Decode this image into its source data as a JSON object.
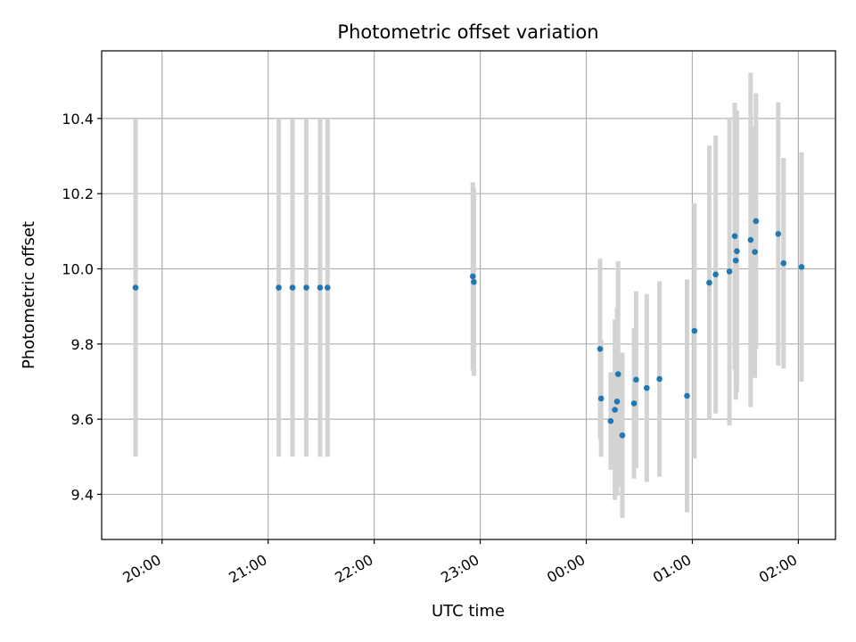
{
  "chart_data": {
    "type": "scatter",
    "title": "Photometric offset variation",
    "xlabel": "UTC time",
    "ylabel": "Photometric offset",
    "x_unit": "hours (UTC, relative to 00:00 of the night's second day)",
    "xlim": [
      -4.57,
      2.35
    ],
    "ylim": [
      9.28,
      10.58
    ],
    "grid": true,
    "x_ticks": [
      -4,
      -3,
      -2,
      -1,
      0,
      1,
      2
    ],
    "x_tick_labels": [
      "20:00",
      "21:00",
      "22:00",
      "23:00",
      "00:00",
      "01:00",
      "02:00"
    ],
    "y_ticks": [
      9.4,
      9.6,
      9.8,
      10.0,
      10.2,
      10.4
    ],
    "y_tick_labels": [
      "9.4",
      "9.6",
      "9.8",
      "10.0",
      "10.2",
      "10.4"
    ],
    "colors": {
      "point": "#1f77b4",
      "errorbar": "#d3d3d3",
      "grid": "#b0b0b0"
    },
    "points": [
      {
        "x": -4.25,
        "y": 9.95,
        "err": 0.45
      },
      {
        "x": -2.9,
        "y": 9.95,
        "err": 0.45
      },
      {
        "x": -2.77,
        "y": 9.95,
        "err": 0.45
      },
      {
        "x": -2.64,
        "y": 9.95,
        "err": 0.45
      },
      {
        "x": -2.51,
        "y": 9.95,
        "err": 0.45
      },
      {
        "x": -2.44,
        "y": 9.95,
        "err": 0.45
      },
      {
        "x": -1.07,
        "y": 9.98,
        "err": 0.25
      },
      {
        "x": -1.06,
        "y": 9.965,
        "err": 0.25
      },
      {
        "x": 0.13,
        "y": 9.787,
        "err": 0.24
      },
      {
        "x": 0.14,
        "y": 9.655,
        "err": 0.155
      },
      {
        "x": 0.23,
        "y": 9.595,
        "err": 0.13
      },
      {
        "x": 0.27,
        "y": 9.625,
        "err": 0.24
      },
      {
        "x": 0.29,
        "y": 9.647,
        "err": 0.25
      },
      {
        "x": 0.3,
        "y": 9.72,
        "err": 0.3
      },
      {
        "x": 0.34,
        "y": 9.557,
        "err": 0.22
      },
      {
        "x": 0.45,
        "y": 9.642,
        "err": 0.2
      },
      {
        "x": 0.47,
        "y": 9.705,
        "err": 0.235
      },
      {
        "x": 0.57,
        "y": 9.683,
        "err": 0.25
      },
      {
        "x": 0.69,
        "y": 9.707,
        "err": 0.26
      },
      {
        "x": 0.95,
        "y": 9.662,
        "err": 0.31
      },
      {
        "x": 1.02,
        "y": 9.835,
        "err": 0.34
      },
      {
        "x": 1.16,
        "y": 9.963,
        "err": 0.365
      },
      {
        "x": 1.22,
        "y": 9.985,
        "err": 0.37
      },
      {
        "x": 1.35,
        "y": 9.993,
        "err": 0.41
      },
      {
        "x": 1.4,
        "y": 10.087,
        "err": 0.355
      },
      {
        "x": 1.41,
        "y": 10.022,
        "err": 0.37
      },
      {
        "x": 1.42,
        "y": 10.047,
        "err": 0.375
      },
      {
        "x": 1.55,
        "y": 10.077,
        "err": 0.445
      },
      {
        "x": 1.59,
        "y": 10.045,
        "err": 0.335
      },
      {
        "x": 1.6,
        "y": 10.127,
        "err": 0.34
      },
      {
        "x": 1.81,
        "y": 10.093,
        "err": 0.35
      },
      {
        "x": 1.86,
        "y": 10.015,
        "err": 0.28
      },
      {
        "x": 2.03,
        "y": 10.005,
        "err": 0.305
      }
    ]
  }
}
